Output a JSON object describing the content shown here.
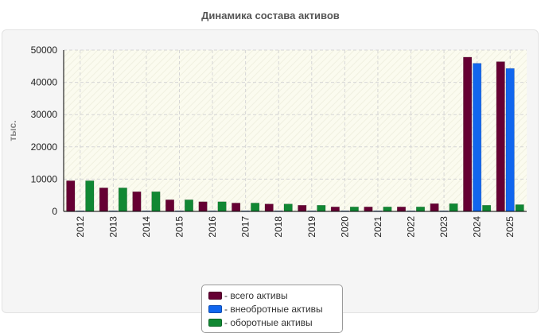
{
  "chart_data": {
    "type": "bar",
    "title": "Динамика состава активов",
    "ylabel": "тыс.",
    "xlabel": "",
    "categories": [
      "2012",
      "2013",
      "2014",
      "2015",
      "2016",
      "2017",
      "2018",
      "2019",
      "2020",
      "2021",
      "2022",
      "2023",
      "2024",
      "2025"
    ],
    "series": [
      {
        "name": "- всего активы",
        "color": "#660033",
        "values": [
          9500,
          7300,
          6100,
          3600,
          3000,
          2600,
          2300,
          1900,
          1400,
          1400,
          1400,
          2400,
          47800,
          46400
        ]
      },
      {
        "name": "- внеобротные активы",
        "color": "#1166ee",
        "values": [
          200,
          200,
          150,
          100,
          80,
          60,
          60,
          50,
          40,
          40,
          40,
          60,
          45900,
          44300
        ]
      },
      {
        "name": "- оборотные активы",
        "color": "#118833",
        "values": [
          9500,
          7300,
          6100,
          3600,
          3000,
          2600,
          2300,
          1900,
          1400,
          1400,
          1400,
          2400,
          1900,
          2100
        ]
      }
    ],
    "ylim": [
      0,
      50000
    ],
    "yticks": [
      0,
      10000,
      20000,
      30000,
      40000,
      50000
    ],
    "grid": true,
    "legend_position": "bottom-center"
  }
}
